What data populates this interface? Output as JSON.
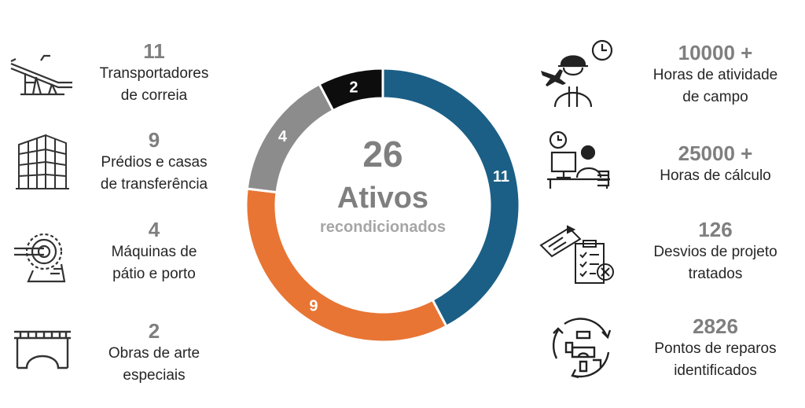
{
  "chart_data": {
    "type": "donut",
    "categories": [
      "Transportadores de correia",
      "Prédios e casas de transferência",
      "Máquinas de pátio e porto",
      "Obras de arte especiais"
    ],
    "values": [
      11,
      9,
      4,
      2
    ],
    "colors": [
      "#1b5f86",
      "#e87534",
      "#8c8c8c",
      "#0d0d0d"
    ],
    "center": {
      "total": "26",
      "title": "Ativos",
      "subtitle": "recondicionados"
    },
    "value_labels": [
      "11",
      "9",
      "4",
      "2"
    ]
  },
  "left_items": [
    {
      "icon": "conveyor-icon",
      "number": "11",
      "label_line1": "Transportadores",
      "label_line2": "de correia"
    },
    {
      "icon": "building-icon",
      "number": "9",
      "label_line1": "Prédios e casas",
      "label_line2": "de transferência"
    },
    {
      "icon": "machine-icon",
      "number": "4",
      "label_line1": "Máquinas de",
      "label_line2": "pátio e porto"
    },
    {
      "icon": "bridge-icon",
      "number": "2",
      "label_line1": "Obras de arte",
      "label_line2": "especiais"
    }
  ],
  "right_items": [
    {
      "icon": "field-worker-icon",
      "number": "10000 +",
      "label_line1": "Horas de atividade",
      "label_line2": "de campo"
    },
    {
      "icon": "desk-worker-icon",
      "number": "25000 +",
      "label_line1": "Horas de cálculo",
      "label_line2": ""
    },
    {
      "icon": "checklist-icon",
      "number": "126",
      "label_line1": "Desvios de projeto",
      "label_line2": "tratados"
    },
    {
      "icon": "repair-cycle-icon",
      "number": "2826",
      "label_line1": "Pontos de reparos",
      "label_line2": "identificados"
    }
  ]
}
